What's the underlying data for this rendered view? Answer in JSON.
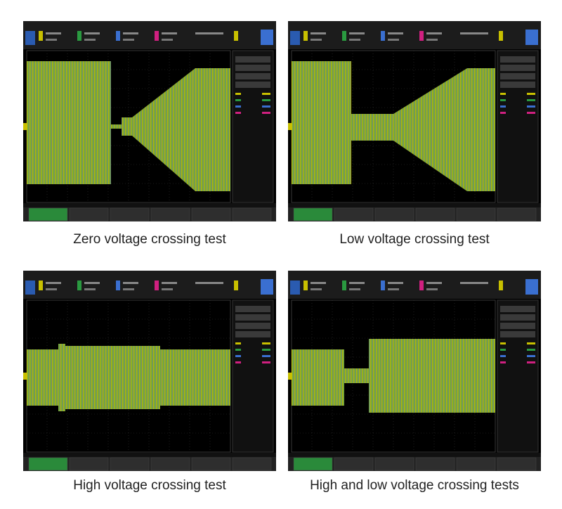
{
  "captions": [
    "Zero voltage crossing test",
    "Low voltage crossing test",
    "High voltage crossing test",
    "High and low voltage crossing tests"
  ]
}
